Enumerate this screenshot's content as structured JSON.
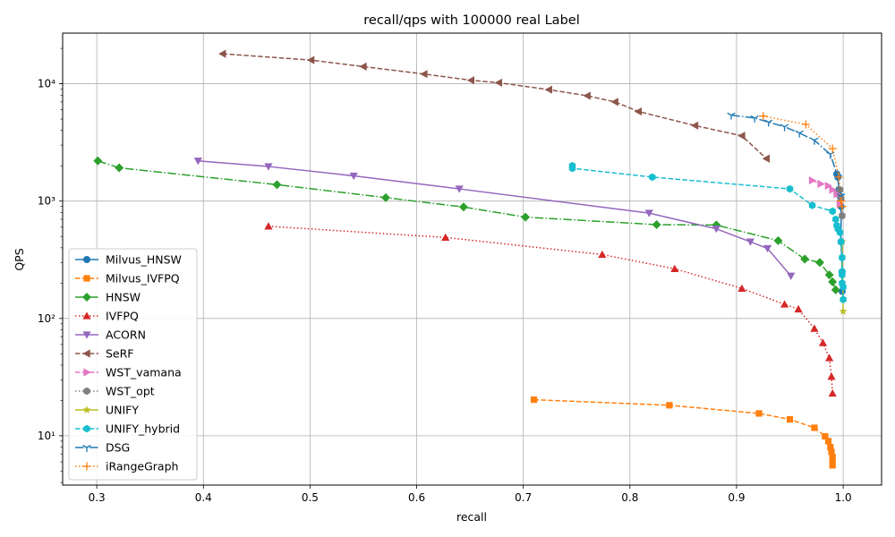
{
  "chart_data": {
    "type": "line",
    "title": "recall/qps with 100000 real Label",
    "xlabel": "recall",
    "ylabel": "QPS",
    "xlim": [
      0.268,
      1.036
    ],
    "ylim": [
      3.8,
      27000
    ],
    "yscale": "log",
    "grid": true,
    "legend_position": "center-left",
    "x_ticks": [
      0.3,
      0.4,
      0.5,
      0.6,
      0.7,
      0.8,
      0.9,
      1.0
    ],
    "x_tick_labels": [
      "0.3",
      "0.4",
      "0.5",
      "0.6",
      "0.7",
      "0.8",
      "0.9",
      "1.0"
    ],
    "y_ticks": [
      10,
      100,
      1000,
      10000
    ],
    "y_tick_labels": [
      "10¹",
      "10²",
      "10³",
      "10⁴"
    ],
    "series": [
      {
        "name": "Milvus_HNSW",
        "color": "#1f77b4",
        "marker": "circle",
        "dash": "solid",
        "x": [
          0.994,
          0.995,
          0.996,
          0.997,
          0.998,
          0.998,
          0.999,
          0.999
        ],
        "y": [
          1700,
          1600,
          1250,
          1100,
          900,
          450,
          250,
          170
        ]
      },
      {
        "name": "Milvus_IVFPQ",
        "color": "#ff7f0e",
        "marker": "square",
        "dash": "dashed",
        "x": [
          0.71,
          0.837,
          0.921,
          0.95,
          0.973,
          0.983,
          0.986,
          0.988,
          0.989,
          0.99,
          0.99,
          0.99
        ],
        "y": [
          20.3,
          18.2,
          15.5,
          13.8,
          11.7,
          9.9,
          9.0,
          8.0,
          7.3,
          6.6,
          6.0,
          5.6
        ]
      },
      {
        "name": "HNSW",
        "color": "#2ca02c",
        "marker": "diamond",
        "dash": "dashdot",
        "x": [
          0.301,
          0.321,
          0.469,
          0.571,
          0.644,
          0.702,
          0.825,
          0.881,
          0.939,
          0.964,
          0.978,
          0.987,
          0.99,
          0.993
        ],
        "y": [
          2200,
          1920,
          1380,
          1070,
          890,
          730,
          630,
          625,
          460,
          320,
          300,
          235,
          205,
          175
        ]
      },
      {
        "name": "IVFPQ",
        "color": "#d62728",
        "marker": "triangle-up",
        "dash": "dotted",
        "x": [
          0.461,
          0.627,
          0.774,
          0.842,
          0.905,
          0.945,
          0.958,
          0.973,
          0.981,
          0.987,
          0.989,
          0.99
        ],
        "y": [
          610,
          490,
          350,
          265,
          180,
          132,
          120,
          82,
          62,
          46,
          32,
          23
        ]
      },
      {
        "name": "ACORN",
        "color": "#9467bd",
        "marker": "triangle-down",
        "dash": "solid",
        "x": [
          0.395,
          0.461,
          0.541,
          0.64,
          0.818,
          0.881,
          0.913,
          0.929,
          0.951
        ],
        "y": [
          2200,
          1970,
          1640,
          1270,
          790,
          580,
          450,
          395,
          230
        ]
      },
      {
        "name": "SeRF",
        "color": "#8c564b",
        "marker": "triangle-left",
        "dash": "dashed",
        "x": [
          0.418,
          0.501,
          0.55,
          0.607,
          0.651,
          0.677,
          0.724,
          0.76,
          0.786,
          0.808,
          0.861,
          0.905,
          0.928
        ],
        "y": [
          18000,
          15900,
          14000,
          12100,
          10700,
          10200,
          8900,
          7900,
          7000,
          5800,
          4400,
          3600,
          2300
        ]
      },
      {
        "name": "WST_vamana",
        "color": "#e377c2",
        "marker": "triangle-right",
        "dash": "dashed",
        "x": [
          0.971,
          0.979,
          0.986,
          0.99,
          0.994,
          0.997
        ],
        "y": [
          1500,
          1400,
          1350,
          1250,
          1150,
          950
        ]
      },
      {
        "name": "WST_opt",
        "color": "#7f7f7f",
        "marker": "hexagon",
        "dash": "dotted",
        "x": [
          0.997,
          0.998,
          0.999
        ],
        "y": [
          1250,
          1050,
          750
        ]
      },
      {
        "name": "UNIFY",
        "color": "#bcbd22",
        "marker": "star",
        "dash": "solid",
        "x": [
          0.999,
          1.0
        ],
        "y": [
          450,
          115
        ]
      },
      {
        "name": "UNIFY_hybrid",
        "color": "#17becf",
        "marker": "hexagon",
        "dash": "dashed",
        "x": [
          0.746,
          0.746,
          0.821,
          0.95,
          0.971,
          0.99,
          0.993,
          0.994,
          0.995,
          0.997,
          0.998,
          0.999,
          0.999,
          0.999,
          0.999,
          1.0,
          1.0
        ],
        "y": [
          2000,
          1900,
          1600,
          1270,
          920,
          820,
          700,
          620,
          580,
          540,
          450,
          330,
          250,
          235,
          200,
          185,
          145
        ]
      },
      {
        "name": "DSG",
        "color": "#1f77b4",
        "marker": "tri",
        "dash": "dashdot",
        "x": [
          0.895,
          0.917,
          0.93,
          0.945,
          0.959,
          0.973,
          0.988,
          0.995,
          0.998
        ],
        "y": [
          5400,
          5100,
          4700,
          4300,
          3800,
          3300,
          2500,
          1600,
          1100
        ]
      },
      {
        "name": "iRangeGraph",
        "color": "#ff7f0e",
        "marker": "plus",
        "dash": "dotted",
        "x": [
          0.925,
          0.965,
          0.99,
          0.996,
          0.998,
          0.999
        ],
        "y": [
          5300,
          4500,
          2800,
          1600,
          1000,
          900
        ]
      }
    ]
  }
}
